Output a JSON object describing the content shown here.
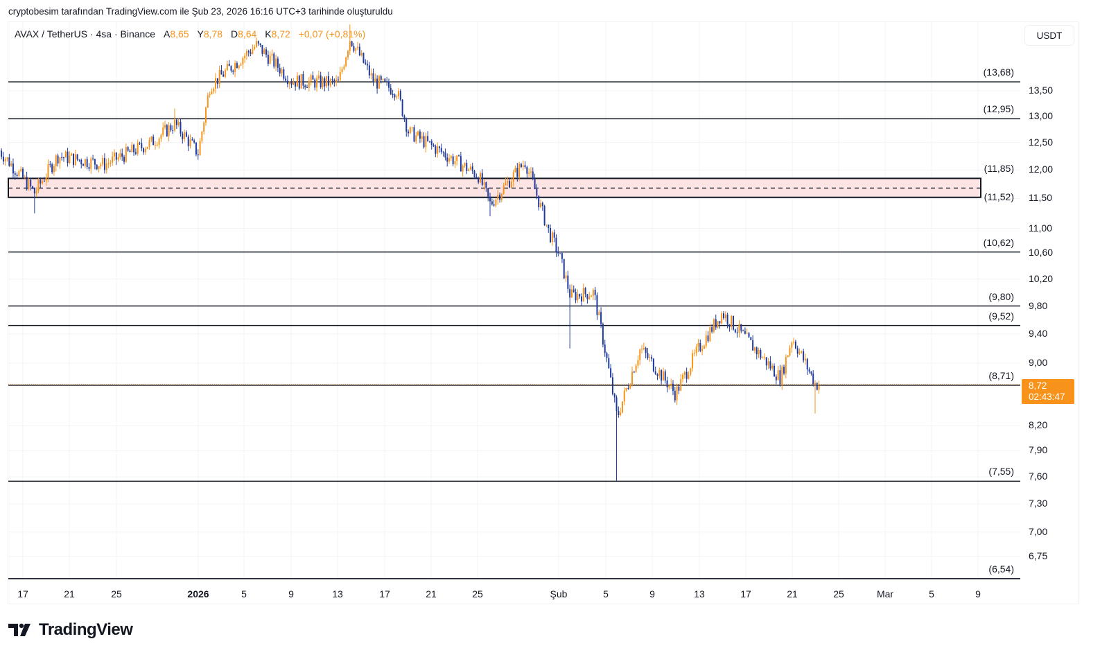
{
  "attribution": "cryptobesim tarafından TradingView.com ile Şub 23, 2026 16:16 UTC+3 tarihinde oluşturuldu",
  "legend": {
    "symbol": "AVAX / TetherUS · 4sa · Binance",
    "open_label": "A",
    "open": "8,65",
    "high_label": "Y",
    "high": "8,78",
    "low_label": "D",
    "low": "8,64",
    "close_label": "K",
    "close": "8,72",
    "change": "+0,07 (+0,81%)"
  },
  "currency": "USDT",
  "last_price": {
    "price": "8,72",
    "countdown": "02:43:47"
  },
  "logo": "TradingView",
  "colors": {
    "up": "#f7931a",
    "down": "#1f3a9e",
    "zone_fill": "#fde4e4",
    "level_line": "#131722",
    "grid": "#f2f3f5",
    "price_tag": "#f7931a"
  },
  "chart_data": {
    "type": "candlestick",
    "title": "AVAX / TetherUS · 4sa · Binance",
    "xlabel": "",
    "ylabel": "USDT",
    "y_scale": "log",
    "ylim": [
      6.54,
      14.9
    ],
    "grid": true,
    "x_ticks": [
      "17",
      "21",
      "25",
      "2026",
      "5",
      "9",
      "13",
      "17",
      "21",
      "25",
      "Şub",
      "5",
      "9",
      "13",
      "17",
      "21",
      "25",
      "Mar",
      "5",
      "9"
    ],
    "y_ticks": [
      "13,50",
      "13,00",
      "12,50",
      "12,00",
      "11,50",
      "11,00",
      "10,60",
      "10,20",
      "9,80",
      "9,40",
      "9,00",
      "8,20",
      "7,90",
      "7,60",
      "7,30",
      "7,00",
      "6,75"
    ],
    "horizontal_levels": [
      {
        "label": "(13,68)",
        "value": 13.68
      },
      {
        "label": "(12,95)",
        "value": 12.95
      },
      {
        "label": "(11,85)",
        "value": 11.85
      },
      {
        "label": "(11,52)",
        "value": 11.52
      },
      {
        "label": "(10,62)",
        "value": 10.62
      },
      {
        "label": "(9,80)",
        "value": 9.8
      },
      {
        "label": "(9,52)",
        "value": 9.52
      },
      {
        "label": "(8,71)",
        "value": 8.71
      },
      {
        "label": "(7,55)",
        "value": 7.55
      },
      {
        "label": "(6,54)",
        "value": 6.54
      }
    ],
    "zone": {
      "top": 11.85,
      "bottom": 11.52,
      "mid_dashed": 11.68
    },
    "price_path_waypoints": [
      {
        "date": "Dec 15",
        "close": 12.35
      },
      {
        "date": "Dec 18",
        "close": 11.6,
        "low": 11.25
      },
      {
        "date": "Dec 20",
        "close": 12.25
      },
      {
        "date": "Dec 24",
        "close": 12.1
      },
      {
        "date": "Dec 28",
        "close": 12.5
      },
      {
        "date": "Dec 30",
        "close": 12.85,
        "high": 13.15
      },
      {
        "date": "Jan 1",
        "close": 12.3
      },
      {
        "date": "Jan 2",
        "close": 13.6
      },
      {
        "date": "Jan 6",
        "close": 14.45,
        "high": 14.6
      },
      {
        "date": "Jan 9",
        "close": 13.7
      },
      {
        "date": "Jan 13",
        "close": 13.65
      },
      {
        "date": "Jan 14",
        "close": 14.6,
        "high": 14.9
      },
      {
        "date": "Jan 16",
        "close": 13.7
      },
      {
        "date": "Jan 18",
        "close": 13.5
      },
      {
        "date": "Jan 19",
        "close": 12.7
      },
      {
        "date": "Jan 25",
        "close": 11.9
      },
      {
        "date": "Jan 26",
        "close": 11.4,
        "low": 11.2
      },
      {
        "date": "Jan 29",
        "close": 12.15
      },
      {
        "date": "Jan 31",
        "close": 10.95
      },
      {
        "date": "Feb 1",
        "close": 10.6
      },
      {
        "date": "Feb 2",
        "close": 9.95,
        "low": 9.2
      },
      {
        "date": "Feb 4",
        "close": 10.0
      },
      {
        "date": "Feb 6",
        "close": 8.3,
        "low": 7.55
      },
      {
        "date": "Feb 8",
        "close": 9.2
      },
      {
        "date": "Feb 11",
        "close": 8.6
      },
      {
        "date": "Feb 13",
        "close": 9.2
      },
      {
        "date": "Feb 15",
        "close": 9.7
      },
      {
        "date": "Feb 20",
        "close": 8.8
      },
      {
        "date": "Feb 21",
        "close": 9.35
      },
      {
        "date": "Feb 23",
        "close": 8.72,
        "low": 8.35
      }
    ],
    "last_bar": {
      "open": 8.65,
      "high": 8.78,
      "low": 8.64,
      "close": 8.72
    }
  }
}
